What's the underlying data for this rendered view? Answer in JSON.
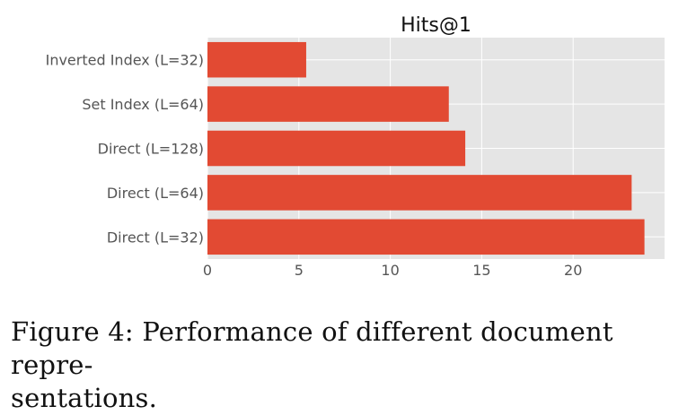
{
  "chart_data": {
    "type": "bar",
    "orientation": "horizontal",
    "title": "Hits@1",
    "xlabel": "",
    "ylabel": "",
    "categories": [
      "Inverted Index (L=32)",
      "Set Index (L=64)",
      "Direct (L=128)",
      "Direct (L=64)",
      "Direct (L=32)"
    ],
    "values": [
      5.4,
      13.2,
      14.1,
      23.2,
      23.9
    ],
    "xlim": [
      0,
      25
    ],
    "xticks": [
      0,
      5,
      10,
      15,
      20
    ],
    "grid": true,
    "bar_color": "#e24a33",
    "background_color": "#e5e5e5",
    "grid_color": "#ffffff"
  },
  "caption": {
    "line1": "Figure 4: Performance of different document repre-",
    "line2": "sentations."
  }
}
